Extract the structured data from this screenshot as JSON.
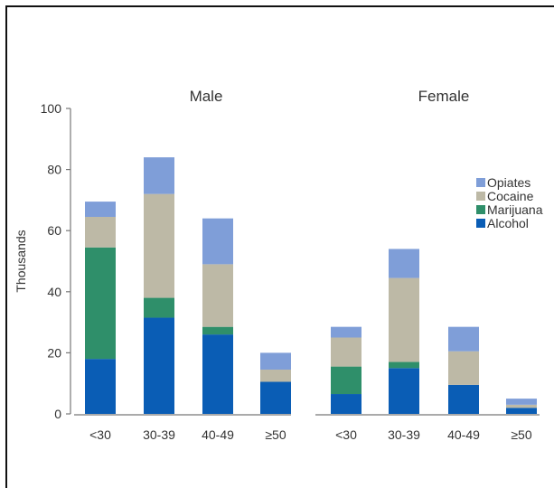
{
  "chart_data": {
    "type": "bar",
    "stacked": true,
    "ylabel": "Thousands",
    "ylim": [
      0,
      100
    ],
    "yticks": [
      0,
      20,
      40,
      60,
      80,
      100
    ],
    "categories": [
      "<30",
      "30-39",
      "40-49",
      "≥50"
    ],
    "panels": [
      {
        "title": "Male",
        "series": [
          {
            "name": "Alcohol",
            "values": [
              18,
              31.5,
              26,
              10.5
            ]
          },
          {
            "name": "Marijuana",
            "values": [
              36.5,
              6.5,
              2.5,
              0
            ]
          },
          {
            "name": "Cocaine",
            "values": [
              10,
              34,
              20.5,
              4
            ]
          },
          {
            "name": "Opiates",
            "values": [
              5,
              12,
              15,
              5.5
            ]
          }
        ]
      },
      {
        "title": "Female",
        "series": [
          {
            "name": "Alcohol",
            "values": [
              6.5,
              15,
              9.5,
              2
            ]
          },
          {
            "name": "Marijuana",
            "values": [
              9,
              2,
              0,
              0
            ]
          },
          {
            "name": "Cocaine",
            "values": [
              9.5,
              27.5,
              11,
              1
            ]
          },
          {
            "name": "Opiates",
            "values": [
              3.5,
              9.5,
              8,
              2
            ]
          }
        ]
      }
    ],
    "legend": {
      "placement": "right",
      "items": [
        "Opiates",
        "Cocaine",
        "Marijuana",
        "Alcohol"
      ]
    },
    "colors": {
      "Alcohol": "#0a5db5",
      "Marijuana": "#2f8f6a",
      "Cocaine": "#bdb9a6",
      "Opiates": "#7f9ed8"
    },
    "grid": false
  }
}
